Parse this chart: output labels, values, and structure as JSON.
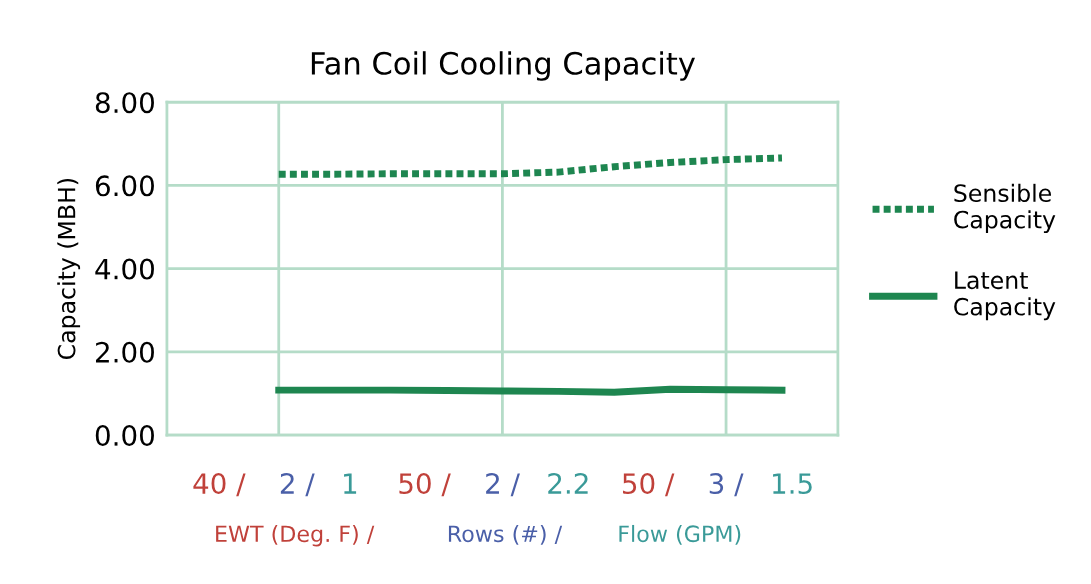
{
  "chart_data": {
    "type": "line",
    "title": "Fan Coil Cooling Capacity",
    "ylabel": "Capacity (MBH)",
    "xlabel": "EWT (Deg. F) / Rows (#) / Flow (GPM)",
    "series": [
      {
        "name": "Sensible Capacity",
        "color": "#1e8650",
        "line_style": "dotted",
        "values": [
          null,
          null,
          6.27,
          6.27,
          6.28,
          6.28,
          6.28,
          6.32,
          6.45,
          6.55,
          6.62,
          6.66,
          null
        ]
      },
      {
        "name": "Latent Capacity",
        "color": "#1e8650",
        "line_style": "solid",
        "values": [
          null,
          null,
          1.08,
          1.08,
          1.08,
          1.07,
          1.06,
          1.05,
          1.03,
          1.1,
          1.09,
          1.08,
          null
        ]
      }
    ],
    "categories": [
      null,
      null,
      "40 / 2 / 1",
      null,
      null,
      null,
      "50 / 2 / 2.2",
      null,
      null,
      null,
      "50 / 3 / 1.5",
      null,
      null
    ],
    "ylim": [
      0,
      8
    ],
    "yticks": [
      {
        "value": 0,
        "label": "0.00"
      },
      {
        "value": 2,
        "label": "2.00"
      },
      {
        "value": 4,
        "label": "4.00"
      },
      {
        "value": 6,
        "label": "6.00"
      },
      {
        "value": 8,
        "label": "8.00"
      }
    ],
    "grid": true,
    "legend": "right",
    "marker": "none"
  }
}
